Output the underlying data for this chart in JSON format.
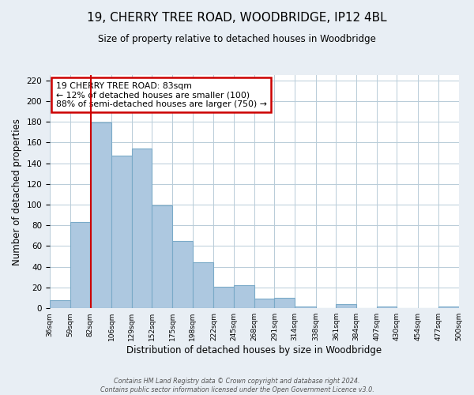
{
  "title": "19, CHERRY TREE ROAD, WOODBRIDGE, IP12 4BL",
  "subtitle": "Size of property relative to detached houses in Woodbridge",
  "xlabel": "Distribution of detached houses by size in Woodbridge",
  "ylabel": "Number of detached properties",
  "bin_labels": [
    "36sqm",
    "59sqm",
    "82sqm",
    "106sqm",
    "129sqm",
    "152sqm",
    "175sqm",
    "198sqm",
    "222sqm",
    "245sqm",
    "268sqm",
    "291sqm",
    "314sqm",
    "338sqm",
    "361sqm",
    "384sqm",
    "407sqm",
    "430sqm",
    "454sqm",
    "477sqm",
    "500sqm"
  ],
  "bin_edges": [
    36,
    59,
    82,
    106,
    129,
    152,
    175,
    198,
    222,
    245,
    268,
    291,
    314,
    338,
    361,
    384,
    407,
    430,
    454,
    477,
    500
  ],
  "bar_heights": [
    8,
    83,
    179,
    147,
    154,
    99,
    65,
    44,
    21,
    22,
    9,
    10,
    2,
    0,
    4,
    0,
    2,
    0,
    0,
    2
  ],
  "bar_color": "#adc8e0",
  "bar_edge_color": "#7aaac8",
  "vline_x": 83,
  "vline_color": "#cc0000",
  "ylim": [
    0,
    225
  ],
  "yticks": [
    0,
    20,
    40,
    60,
    80,
    100,
    120,
    140,
    160,
    180,
    200,
    220
  ],
  "annotation_title": "19 CHERRY TREE ROAD: 83sqm",
  "annotation_line1": "← 12% of detached houses are smaller (100)",
  "annotation_line2": "88% of semi-detached houses are larger (750) →",
  "annotation_box_color": "#ffffff",
  "annotation_box_edgecolor": "#cc0000",
  "footer_line1": "Contains HM Land Registry data © Crown copyright and database right 2024.",
  "footer_line2": "Contains public sector information licensed under the Open Government Licence v3.0.",
  "bg_color": "#e8eef4",
  "plot_bg_color": "#ffffff"
}
